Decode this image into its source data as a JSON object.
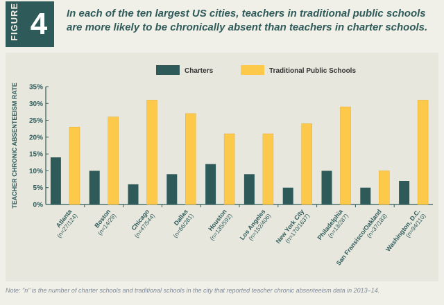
{
  "figure": {
    "label": "FIGURE",
    "number": "4",
    "title": "In each of the ten largest US cities, teachers in traditional public schools are more likely to be chronically absent than teachers in charter schools."
  },
  "colors": {
    "charters": "#2e5b5a",
    "traditional": "#fcc94b",
    "header_teal": "#2e5b5a"
  },
  "note": "Note: \"n\" is the number of charter schools and traditional schools in the city that reported teacher chronic absenteeism data in 2013–14.",
  "chart_data": {
    "type": "bar",
    "title": "",
    "xlabel": "",
    "ylabel": "TEACHER CHRONIC ABSENTEEISM RATE",
    "ylim": [
      0,
      35
    ],
    "yticks": [
      "0%",
      "5%",
      "10%",
      "15%",
      "20%",
      "25%",
      "30%",
      "35%"
    ],
    "grid": false,
    "legend_position": "top-center",
    "categories": [
      {
        "city": "Atlanta",
        "n": "(n=27/124)"
      },
      {
        "city": "Boston",
        "n": "(n=14/29)"
      },
      {
        "city": "Chicago",
        "n": "(n=47/544)"
      },
      {
        "city": "Dallas",
        "n": "(n=66/281)"
      },
      {
        "city": "Houston",
        "n": "(n=135/592)"
      },
      {
        "city": "Los Angeles",
        "n": "(n=152/406)"
      },
      {
        "city": "New York City",
        "n": "(n=170/1637)"
      },
      {
        "city": "Philadelphia",
        "n": "(n=13/287)"
      },
      {
        "city": "San Fransisco/Oakland",
        "n": "(n=37/183)"
      },
      {
        "city": "Washington, D.C.",
        "n": "(n=94/110)"
      }
    ],
    "series": [
      {
        "name": "Charters",
        "values": [
          14,
          10,
          6,
          9,
          12,
          9,
          5,
          10,
          5,
          7
        ]
      },
      {
        "name": "Traditional Public Schools",
        "values": [
          23,
          26,
          31,
          27,
          21,
          21,
          24,
          29,
          10,
          31
        ]
      }
    ]
  }
}
